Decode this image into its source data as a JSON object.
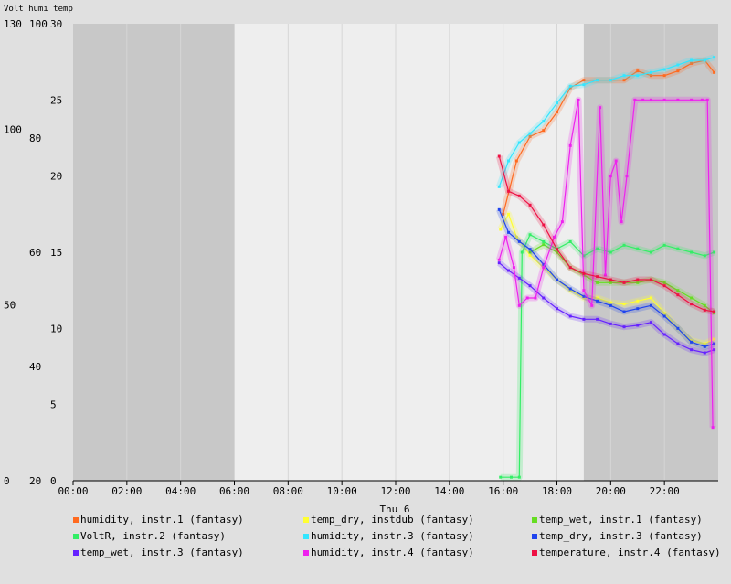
{
  "chart_data": {
    "type": "line",
    "title": "Volt humi temp",
    "xlabel": "Thu 6",
    "x_tick_labels": [
      "00:00",
      "02:00",
      "04:00",
      "06:00",
      "08:00",
      "10:00",
      "12:00",
      "14:00",
      "16:00",
      "18:00",
      "20:00",
      "22:00"
    ],
    "x_range_hours": [
      0,
      24
    ],
    "axes": {
      "volt": {
        "ticks": [
          "0",
          "50",
          "100",
          "130"
        ],
        "range": [
          0,
          130
        ]
      },
      "humi": {
        "ticks": [
          "20",
          "40",
          "60",
          "80",
          "100"
        ],
        "range": [
          20,
          100
        ]
      },
      "temp": {
        "ticks": [
          "0",
          "5",
          "10",
          "15",
          "20",
          "25",
          "30"
        ],
        "range": [
          0,
          30
        ]
      }
    },
    "background_bands": [
      {
        "from": 0,
        "to": 6,
        "shade": "dark",
        "color": "#c8c8c8"
      },
      {
        "from": 6,
        "to": 19,
        "shade": "light",
        "color": "#eeeeee"
      },
      {
        "from": 19,
        "to": 24,
        "shade": "dark",
        "color": "#c8c8c8"
      }
    ],
    "series": [
      {
        "name": "humidity, instr.1 (fantasy)",
        "color": "#ff6a1f",
        "axis": "temp",
        "x": [
          16.0,
          16.5,
          17.0,
          17.5,
          18.0,
          18.5,
          19.0,
          19.5,
          20.0,
          20.5,
          21.0,
          21.5,
          22.0,
          22.5,
          23.0,
          23.5,
          23.85
        ],
        "y": [
          17.5,
          21.0,
          22.6,
          23.0,
          24.2,
          25.8,
          26.3,
          26.3,
          26.3,
          26.3,
          26.9,
          26.6,
          26.6,
          26.9,
          27.4,
          27.6,
          26.8
        ]
      },
      {
        "name": "temp_dry, instdub (fantasy)",
        "color": "#ffff33",
        "axis": "temp",
        "x": [
          15.9,
          16.2,
          16.5,
          17.0,
          17.5,
          18.0,
          18.5,
          19.0,
          19.5,
          20.0,
          20.5,
          21.0,
          21.5,
          22.0,
          22.5,
          23.0,
          23.5,
          23.85
        ],
        "y": [
          16.5,
          17.5,
          16.0,
          14.8,
          14.0,
          13.2,
          12.5,
          12.0,
          12.0,
          11.7,
          11.6,
          11.8,
          12.0,
          11.0,
          10.0,
          9.2,
          9.0,
          9.3
        ]
      },
      {
        "name": "temp_wet, instr.1 (fantasy)",
        "color": "#66dd22",
        "axis": "temp",
        "x": [
          17.0,
          17.5,
          18.0,
          18.5,
          19.0,
          19.5,
          20.0,
          20.5,
          21.0,
          21.5,
          22.0,
          22.5,
          23.0,
          23.5,
          23.85
        ],
        "y": [
          15.0,
          15.5,
          15.0,
          14.0,
          13.5,
          13.0,
          13.0,
          13.0,
          13.0,
          13.2,
          13.0,
          12.5,
          12.0,
          11.5,
          11.0
        ]
      },
      {
        "name": "VoltR, instr.2 (fantasy)",
        "color": "#33ee66",
        "axis": "volt",
        "x": [
          15.9,
          16.3,
          16.6,
          16.7,
          17.0,
          17.5,
          18.0,
          18.5,
          19.0,
          19.5,
          20.0,
          20.5,
          21.0,
          21.5,
          22.0,
          22.5,
          23.0,
          23.5,
          23.85
        ],
        "y": [
          1,
          1,
          1,
          65,
          70,
          68,
          66,
          68,
          64,
          66,
          65,
          67,
          66,
          65,
          67,
          66,
          65,
          64,
          65
        ]
      },
      {
        "name": "humidity, instr.3 (fantasy)",
        "color": "#33e6ff",
        "axis": "temp",
        "x": [
          15.85,
          16.2,
          16.6,
          17.0,
          17.5,
          18.0,
          18.5,
          19.0,
          19.5,
          20.0,
          20.5,
          21.0,
          21.5,
          22.0,
          22.5,
          23.0,
          23.5,
          23.85
        ],
        "y": [
          19.3,
          21.0,
          22.2,
          22.8,
          23.6,
          24.8,
          25.9,
          26.0,
          26.3,
          26.3,
          26.6,
          26.6,
          26.8,
          27.0,
          27.3,
          27.6,
          27.6,
          27.8
        ]
      },
      {
        "name": "temp_dry, instr.3 (fantasy)",
        "color": "#1f44ee",
        "axis": "temp",
        "x": [
          15.85,
          16.2,
          16.6,
          17.0,
          17.5,
          18.0,
          18.5,
          19.0,
          19.5,
          20.0,
          20.5,
          21.0,
          21.5,
          22.0,
          22.5,
          23.0,
          23.5,
          23.85
        ],
        "y": [
          17.8,
          16.3,
          15.7,
          15.2,
          14.2,
          13.2,
          12.6,
          12.1,
          11.8,
          11.5,
          11.1,
          11.3,
          11.5,
          10.8,
          10.0,
          9.1,
          8.8,
          9.0
        ]
      },
      {
        "name": "temp_wet, instr.3 (fantasy)",
        "color": "#6622ff",
        "axis": "temp",
        "x": [
          15.85,
          16.2,
          16.6,
          17.0,
          17.5,
          18.0,
          18.5,
          19.0,
          19.5,
          20.0,
          20.5,
          21.0,
          21.5,
          22.0,
          22.5,
          23.0,
          23.5,
          23.85
        ],
        "y": [
          14.3,
          13.8,
          13.3,
          12.8,
          12.0,
          11.3,
          10.8,
          10.6,
          10.6,
          10.3,
          10.1,
          10.2,
          10.4,
          9.6,
          9.0,
          8.6,
          8.4,
          8.6
        ]
      },
      {
        "name": "humidity, instr.4 (fantasy)",
        "color": "#ee22ee",
        "axis": "temp",
        "x": [
          15.85,
          16.1,
          16.4,
          16.6,
          16.9,
          17.2,
          17.5,
          17.9,
          18.2,
          18.5,
          18.8,
          19.0,
          19.3,
          19.6,
          19.8,
          20.0,
          20.2,
          20.4,
          20.6,
          20.9,
          21.2,
          21.5,
          22.0,
          22.5,
          23.0,
          23.4,
          23.6,
          23.8
        ],
        "y": [
          14.5,
          16.0,
          14.0,
          11.5,
          12.0,
          12.0,
          14.0,
          16.0,
          17.0,
          22.0,
          25.0,
          12.5,
          11.5,
          24.5,
          13.5,
          20.0,
          21.0,
          17.0,
          20.0,
          25.0,
          25.0,
          25.0,
          25.0,
          25.0,
          25.0,
          25.0,
          25.0,
          3.5
        ]
      },
      {
        "name": "temperature, instr.4 (fantasy)",
        "color": "#ee1144",
        "axis": "temp",
        "x": [
          15.85,
          16.2,
          16.6,
          17.0,
          17.5,
          18.0,
          18.5,
          19.0,
          19.5,
          20.0,
          20.5,
          21.0,
          21.5,
          22.0,
          22.5,
          23.0,
          23.5,
          23.85
        ],
        "y": [
          21.3,
          19.0,
          18.7,
          18.1,
          16.8,
          15.2,
          14.0,
          13.6,
          13.4,
          13.2,
          13.0,
          13.2,
          13.2,
          12.8,
          12.2,
          11.6,
          11.2,
          11.1
        ]
      }
    ]
  }
}
